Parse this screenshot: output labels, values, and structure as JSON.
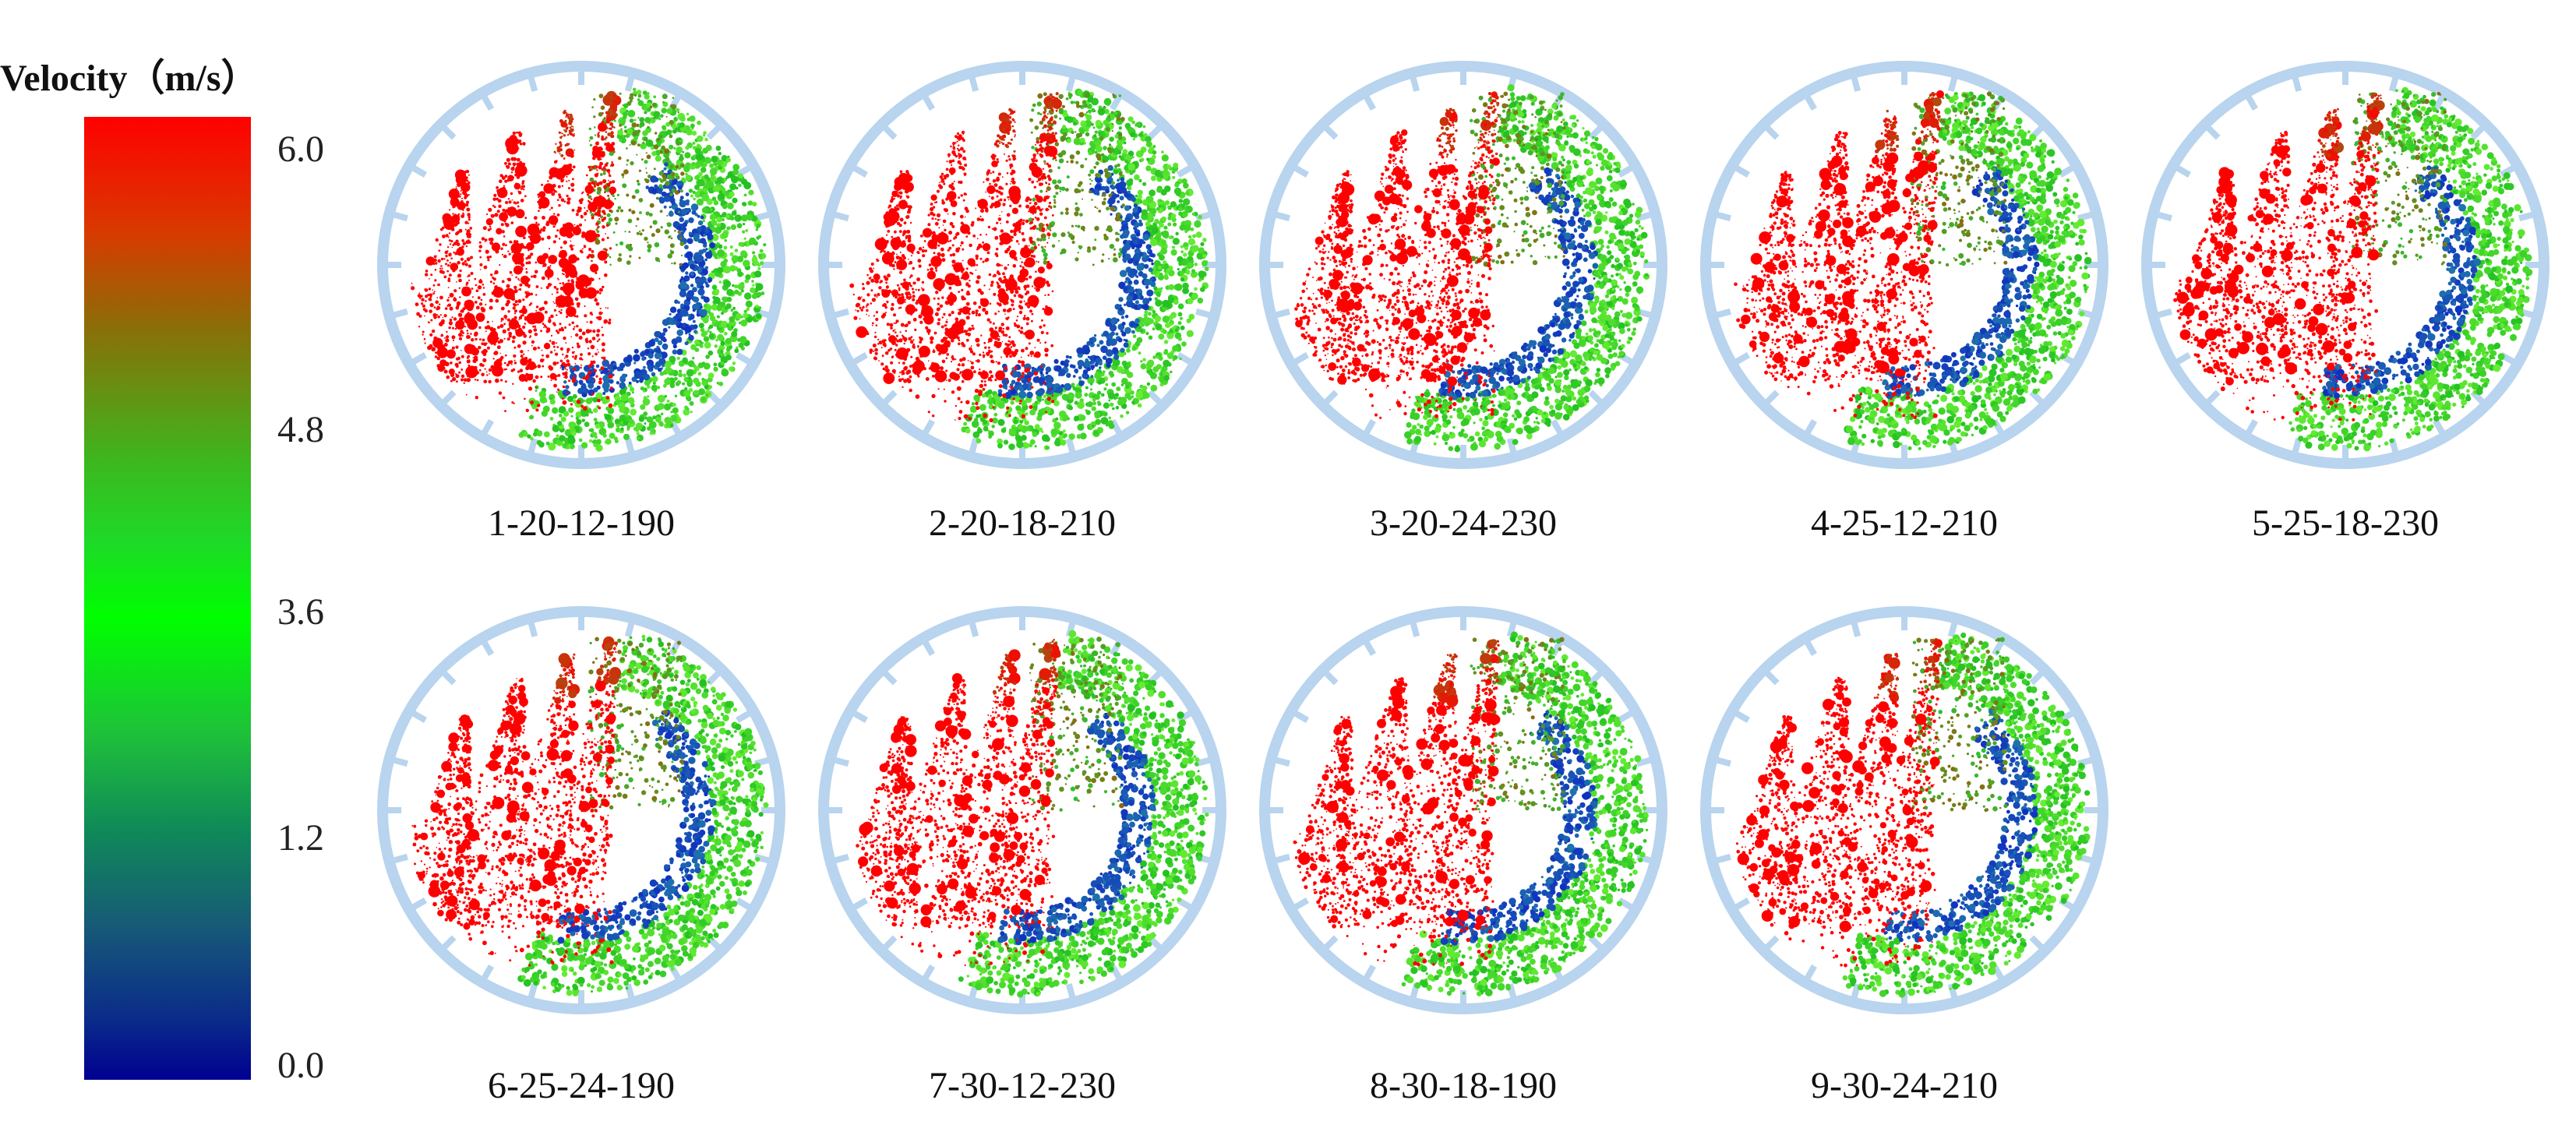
{
  "legend": {
    "title": "Velocity（m/s）",
    "ticks": [
      "6.0",
      "4.8",
      "3.6",
      "1.2",
      "0.0"
    ]
  },
  "panels": [
    {
      "label": "1-20-12-190"
    },
    {
      "label": "2-20-18-210"
    },
    {
      "label": "3-20-24-230"
    },
    {
      "label": "4-25-12-210"
    },
    {
      "label": "5-25-18-230"
    },
    {
      "label": "6-25-24-190"
    },
    {
      "label": "7-30-12-230"
    },
    {
      "label": "8-30-18-190"
    },
    {
      "label": "9-30-24-210"
    }
  ],
  "colors": {
    "ring": "#b8d4ee",
    "high_velocity": "#ff0000",
    "mid_velocity": "#00dd00",
    "low_velocity": "#1030c0"
  }
}
